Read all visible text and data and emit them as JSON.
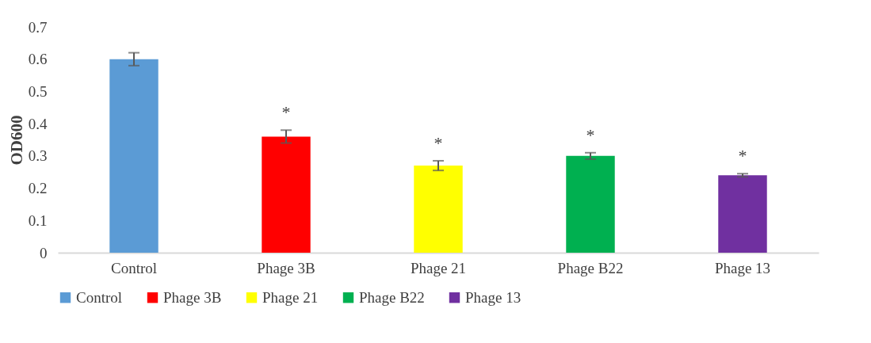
{
  "chart_data": {
    "type": "bar",
    "ylabel": "OD600",
    "categories": [
      "Control",
      "Phage 3B",
      "Phage 21",
      "Phage B22",
      "Phage 13"
    ],
    "series": [
      {
        "name": "Control",
        "color": "#5b9bd5",
        "values": [
          0.6,
          null,
          null,
          null,
          null
        ],
        "errors": [
          0.02,
          null,
          null,
          null,
          null
        ]
      },
      {
        "name": "Phage 3B",
        "color": "#ff0000",
        "values": [
          null,
          0.36,
          null,
          null,
          null
        ],
        "errors": [
          null,
          0.02,
          null,
          null,
          null
        ]
      },
      {
        "name": "Phage 21",
        "color": "#ffff00",
        "values": [
          null,
          null,
          0.27,
          null,
          null
        ],
        "errors": [
          null,
          null,
          0.015,
          null,
          null
        ]
      },
      {
        "name": "Phage B22",
        "color": "#00b050",
        "values": [
          null,
          null,
          null,
          0.3,
          null
        ],
        "errors": [
          null,
          null,
          null,
          0.01,
          null
        ]
      },
      {
        "name": "Phage 13",
        "color": "#7030a0",
        "values": [
          null,
          null,
          null,
          null,
          0.24
        ],
        "errors": [
          null,
          null,
          null,
          null,
          0.005
        ]
      }
    ],
    "ylim": [
      0,
      0.7
    ],
    "yticks": [
      {
        "value": 0,
        "label": "0"
      },
      0.1,
      0.2,
      0.3,
      0.4,
      0.5,
      0.6,
      0.7
    ],
    "grid": false,
    "legend": "bottom",
    "annotations": [
      "*",
      "*",
      "*",
      "*"
    ]
  }
}
